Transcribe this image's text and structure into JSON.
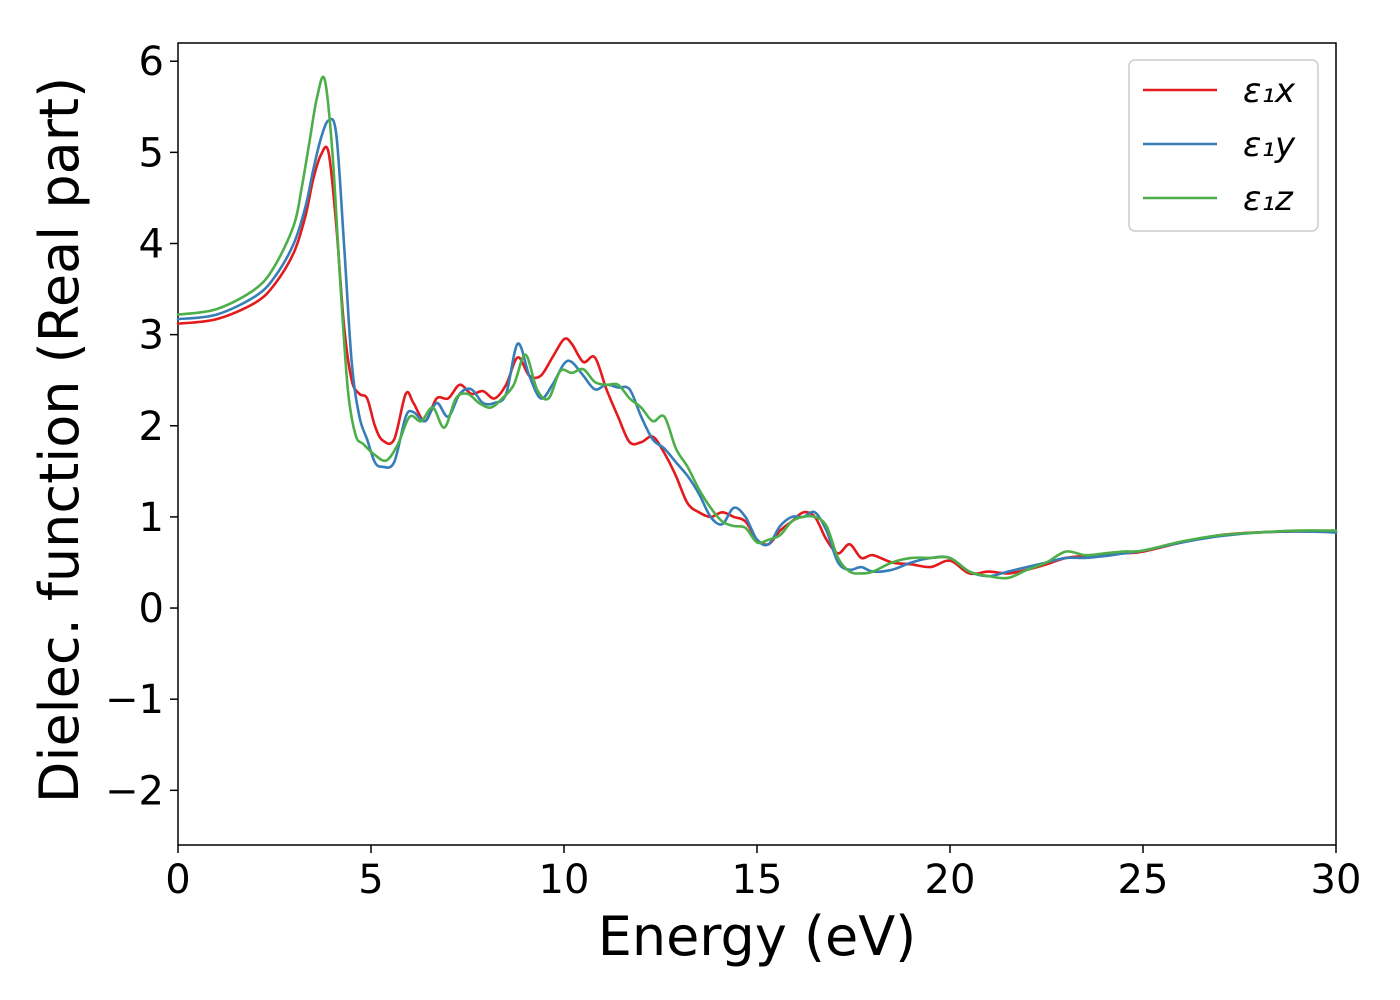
{
  "chart_data": {
    "type": "line",
    "xlabel": "Energy (eV)",
    "ylabel": "Dielec. function (Real part)",
    "xlim": [
      0,
      30
    ],
    "ylim": [
      -2.6,
      6.2
    ],
    "xticks": [
      0,
      5,
      10,
      15,
      20,
      25,
      30
    ],
    "xtick_labels": [
      "0",
      "5",
      "10",
      "15",
      "20",
      "25",
      "30"
    ],
    "yticks": [
      -2,
      -1,
      0,
      1,
      2,
      3,
      4,
      5,
      6
    ],
    "ytick_labels": [
      "−2",
      "−1",
      "0",
      "1",
      "2",
      "3",
      "4",
      "5",
      "6"
    ],
    "grid": false,
    "legend_position": "top-right",
    "series": [
      {
        "name": "ε₁x",
        "color": "#e41a1c",
        "x": [
          0,
          1,
          2,
          2.5,
          3,
          3.3,
          3.5,
          3.7,
          3.9,
          4.1,
          4.3,
          4.5,
          4.7,
          4.9,
          5.1,
          5.3,
          5.6,
          5.9,
          6.1,
          6.4,
          6.7,
          7.0,
          7.3,
          7.6,
          7.9,
          8.2,
          8.5,
          8.8,
          9.1,
          9.4,
          9.7,
          10.0,
          10.2,
          10.5,
          10.8,
          11.1,
          11.4,
          11.7,
          12.0,
          12.3,
          12.6,
          12.9,
          13.2,
          13.5,
          13.8,
          14.1,
          14.4,
          14.7,
          15.0,
          15.3,
          15.6,
          15.9,
          16.2,
          16.5,
          16.8,
          17.1,
          17.4,
          17.7,
          18.0,
          18.5,
          19.0,
          19.5,
          20.0,
          20.5,
          21.0,
          21.5,
          22.0,
          22.5,
          23.0,
          23.5,
          24.0,
          24.5,
          25.0,
          26.0,
          27.0,
          28.0,
          29.0,
          30.0
        ],
        "values": [
          3.12,
          3.17,
          3.35,
          3.55,
          3.9,
          4.3,
          4.7,
          4.97,
          5.0,
          4.2,
          3.1,
          2.5,
          2.35,
          2.3,
          2.0,
          1.84,
          1.85,
          2.35,
          2.25,
          2.05,
          2.3,
          2.3,
          2.45,
          2.35,
          2.38,
          2.3,
          2.45,
          2.75,
          2.55,
          2.55,
          2.75,
          2.95,
          2.9,
          2.7,
          2.75,
          2.4,
          2.1,
          1.82,
          1.82,
          1.88,
          1.7,
          1.45,
          1.15,
          1.05,
          1.0,
          1.05,
          1.0,
          0.95,
          0.75,
          0.7,
          0.85,
          0.95,
          1.05,
          1.0,
          0.75,
          0.6,
          0.7,
          0.55,
          0.58,
          0.5,
          0.48,
          0.45,
          0.52,
          0.38,
          0.4,
          0.38,
          0.42,
          0.48,
          0.55,
          0.57,
          0.58,
          0.6,
          0.62,
          0.72,
          0.8,
          0.83,
          0.84,
          0.84
        ]
      },
      {
        "name": "ε₁y",
        "color": "#377eb8",
        "x": [
          0,
          1,
          2,
          2.5,
          3,
          3.3,
          3.5,
          3.7,
          3.9,
          4.1,
          4.3,
          4.5,
          4.7,
          4.9,
          5.1,
          5.3,
          5.6,
          5.9,
          6.1,
          6.4,
          6.7,
          7.0,
          7.3,
          7.6,
          7.9,
          8.2,
          8.5,
          8.8,
          9.1,
          9.4,
          9.7,
          10.0,
          10.2,
          10.5,
          10.8,
          11.1,
          11.4,
          11.7,
          12.0,
          12.3,
          12.6,
          12.9,
          13.2,
          13.5,
          13.8,
          14.1,
          14.4,
          14.7,
          15.0,
          15.3,
          15.6,
          15.9,
          16.2,
          16.5,
          16.8,
          17.1,
          17.4,
          17.7,
          18.0,
          18.5,
          19.0,
          19.5,
          20.0,
          20.5,
          21.0,
          21.5,
          22.0,
          22.5,
          23.0,
          23.5,
          24.0,
          24.5,
          25.0,
          26.0,
          27.0,
          28.0,
          29.0,
          30.0
        ],
        "values": [
          3.17,
          3.22,
          3.42,
          3.63,
          4.0,
          4.4,
          4.8,
          5.15,
          5.35,
          5.2,
          4.0,
          2.7,
          2.1,
          1.85,
          1.6,
          1.55,
          1.6,
          2.1,
          2.15,
          2.05,
          2.25,
          2.1,
          2.35,
          2.4,
          2.25,
          2.25,
          2.35,
          2.9,
          2.55,
          2.3,
          2.45,
          2.68,
          2.7,
          2.55,
          2.4,
          2.45,
          2.42,
          2.4,
          2.1,
          1.85,
          1.75,
          1.6,
          1.45,
          1.25,
          1.0,
          0.92,
          1.1,
          1.0,
          0.75,
          0.7,
          0.9,
          1.0,
          1.0,
          1.05,
          0.85,
          0.5,
          0.42,
          0.45,
          0.4,
          0.42,
          0.5,
          0.55,
          0.55,
          0.4,
          0.35,
          0.4,
          0.45,
          0.5,
          0.55,
          0.55,
          0.57,
          0.6,
          0.63,
          0.72,
          0.79,
          0.83,
          0.84,
          0.83
        ]
      },
      {
        "name": "ε₁z",
        "color": "#4daf4a",
        "x": [
          0,
          1,
          2,
          2.5,
          3,
          3.2,
          3.4,
          3.6,
          3.8,
          4.0,
          4.2,
          4.4,
          4.6,
          4.8,
          5.1,
          5.4,
          5.7,
          6.0,
          6.3,
          6.6,
          6.9,
          7.2,
          7.5,
          7.8,
          8.1,
          8.4,
          8.7,
          9.0,
          9.3,
          9.6,
          9.9,
          10.2,
          10.5,
          10.8,
          11.1,
          11.4,
          11.7,
          12.0,
          12.3,
          12.6,
          12.9,
          13.2,
          13.5,
          13.8,
          14.1,
          14.4,
          14.7,
          15.0,
          15.3,
          15.6,
          15.9,
          16.2,
          16.5,
          16.8,
          17.1,
          17.4,
          17.7,
          18.0,
          18.5,
          19.0,
          19.5,
          20.0,
          20.5,
          21.0,
          21.5,
          22.0,
          22.5,
          23.0,
          23.5,
          24.0,
          24.5,
          25.0,
          26.0,
          27.0,
          28.0,
          29.0,
          30.0
        ],
        "values": [
          3.22,
          3.28,
          3.5,
          3.75,
          4.2,
          4.6,
          5.1,
          5.6,
          5.8,
          5.0,
          3.6,
          2.4,
          1.9,
          1.8,
          1.68,
          1.62,
          1.8,
          2.1,
          2.05,
          2.2,
          1.98,
          2.3,
          2.35,
          2.25,
          2.2,
          2.3,
          2.45,
          2.78,
          2.4,
          2.3,
          2.6,
          2.58,
          2.62,
          2.48,
          2.45,
          2.45,
          2.3,
          2.2,
          2.05,
          2.1,
          1.75,
          1.55,
          1.3,
          1.1,
          0.95,
          0.9,
          0.88,
          0.72,
          0.75,
          0.8,
          0.95,
          1.0,
          1.0,
          0.9,
          0.55,
          0.4,
          0.38,
          0.4,
          0.5,
          0.55,
          0.55,
          0.55,
          0.4,
          0.35,
          0.33,
          0.42,
          0.5,
          0.62,
          0.58,
          0.6,
          0.62,
          0.63,
          0.73,
          0.8,
          0.83,
          0.85,
          0.85
        ]
      }
    ]
  }
}
